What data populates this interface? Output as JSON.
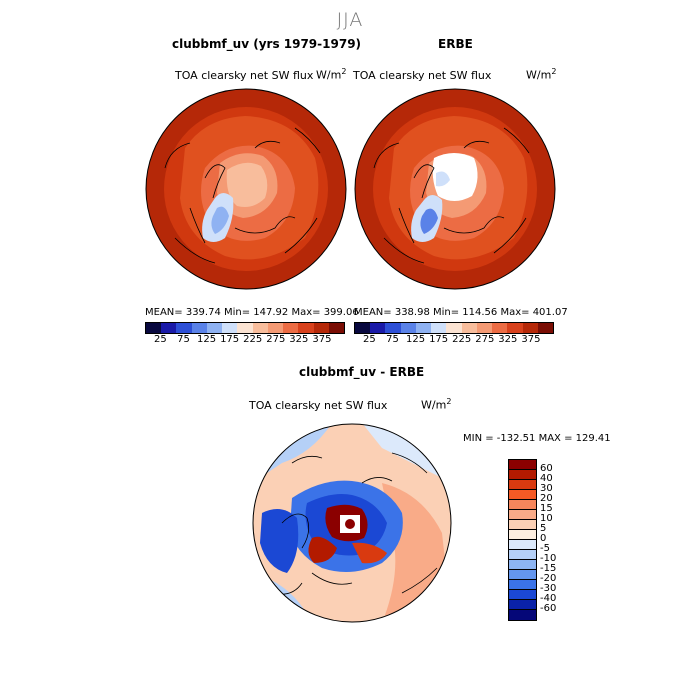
{
  "season": "JJA",
  "panels": {
    "model": {
      "title": "clubbmf_uv (yrs 1979-1979)",
      "variable": "TOA clearsky net SW flux",
      "units": "W/m",
      "units_exp": "2",
      "stats": "MEAN= 339.74   Min= 147.92   Max= 399.06"
    },
    "obs": {
      "title": "ERBE",
      "variable": "TOA clearsky net SW flux",
      "units": "W/m",
      "units_exp": "2",
      "stats": "MEAN= 338.98   Min= 114.56   Max= 401.07"
    },
    "diff": {
      "title": "clubbmf_uv - ERBE",
      "variable": "TOA clearsky net SW flux",
      "units": "W/m",
      "units_exp": "2",
      "minmax": "MIN = -132.51  MAX = 129.41"
    }
  },
  "abs_colorbar": {
    "colors": [
      "#08083f",
      "#1a1aa8",
      "#2d4fd6",
      "#5a82e8",
      "#8fb2f2",
      "#cfe0fa",
      "#fbe3d2",
      "#f8bd9c",
      "#f49a74",
      "#ec6c44",
      "#d8411c",
      "#b52808",
      "#7a0d04"
    ],
    "ticks": [
      "25",
      "75",
      "125",
      "175",
      "225",
      "275",
      "325",
      "375"
    ]
  },
  "diff_colorbar": {
    "colors": [
      "#8b0000",
      "#b31a00",
      "#d93a10",
      "#f55a25",
      "#f6865c",
      "#f9ab88",
      "#fbd0b5",
      "#fdeee0",
      "#dce9fb",
      "#b5d0f7",
      "#8db5f3",
      "#6496ee",
      "#3b73e8",
      "#1b48d4",
      "#0a22a8",
      "#050778"
    ],
    "labels": [
      "60",
      "40",
      "30",
      "20",
      "15",
      "10",
      "5",
      "0",
      "-5",
      "-10",
      "-15",
      "-20",
      "-30",
      "-40",
      "-60"
    ]
  }
}
